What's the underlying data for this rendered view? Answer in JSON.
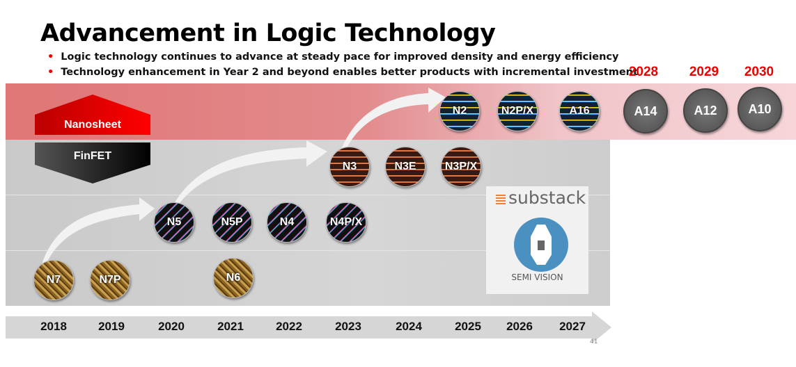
{
  "title": "Advancement in Logic Technology",
  "bullets": [
    "Logic technology continues to advance at steady pace for improved density and energy efficiency",
    "Technology enhancement in Year 2 and beyond enables better products with incremental investment"
  ],
  "colors": {
    "accent_red": "#e00000",
    "nanosheet_band": "#e07676",
    "finfet_band": "#c9c9c9"
  },
  "transistor_types": {
    "nanosheet": "Nanosheet",
    "finfet": "FinFET"
  },
  "future_years": [
    "2028",
    "2029",
    "2030"
  ],
  "nodes": {
    "n7": "N7",
    "n7p": "N7P",
    "n6": "N6",
    "n5": "N5",
    "n5p": "N5P",
    "n4": "N4",
    "n4px": "N4P/X",
    "n3": "N3",
    "n3e": "N3E",
    "n3px": "N3P/X",
    "n2": "N2",
    "n2px": "N2P/X",
    "a16": "A16",
    "a14": "A14",
    "a12": "A12",
    "a10": "A10"
  },
  "timeline_years": [
    "2018",
    "2019",
    "2020",
    "2021",
    "2022",
    "2023",
    "2024",
    "2025",
    "2026",
    "2027"
  ],
  "page_number": "41",
  "watermark": {
    "brand": "substack",
    "name": "SEMI VISION"
  }
}
